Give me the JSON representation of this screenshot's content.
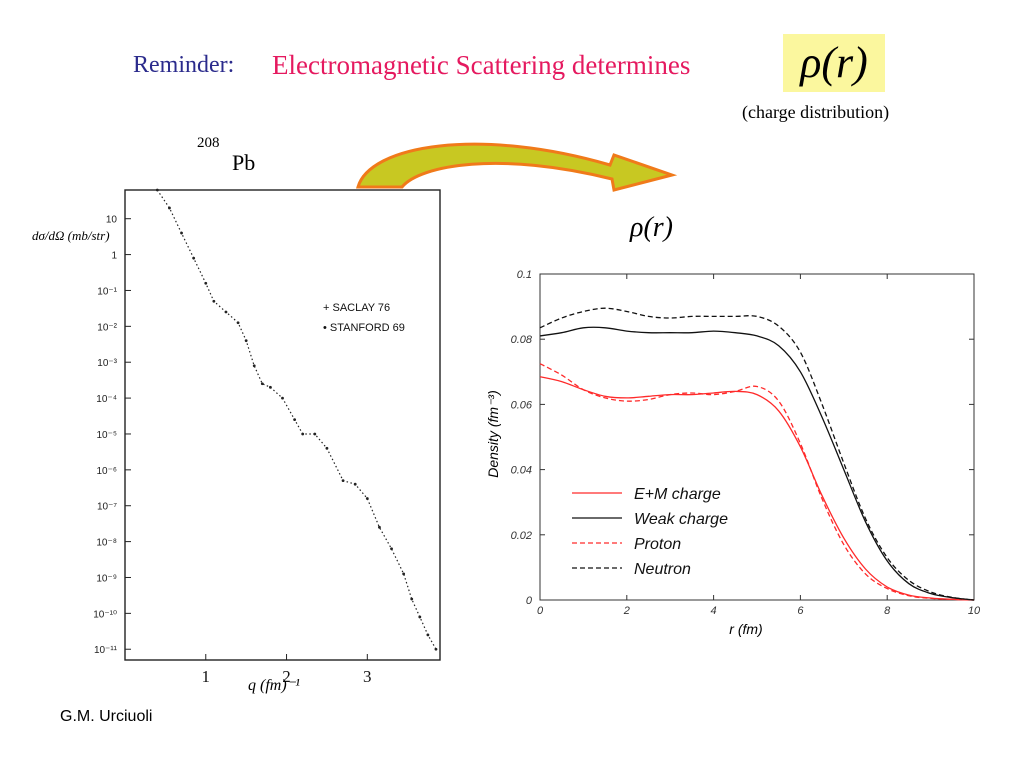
{
  "header": {
    "reminder": "Reminder:",
    "title": "Electromagnetic Scattering  determines",
    "rho_symbol": "ρ(r)",
    "note": "(charge  distribution)"
  },
  "nucleus": {
    "mass_number": "208",
    "symbol": "Pb"
  },
  "right_label": "ρ(r)",
  "author": "G.M. Urciuoli",
  "colors": {
    "reminder": "#2b2b8c",
    "title": "#e5195f",
    "highlight": "#fbf79e",
    "arrow_fill": "#c8c822",
    "arrow_edge": "#f07a1a",
    "red": "#ff2a2a",
    "black": "#111111"
  },
  "chart_data": [
    {
      "type": "scatter",
      "scale": "log-y",
      "ylabel": "dσ/dΩ (mb/str)",
      "xlabel": "q (fm)⁻¹",
      "x_ticks": [
        "1",
        "2",
        "3"
      ],
      "y_ticks": [
        "10",
        "1",
        "10⁻¹",
        "10⁻²",
        "10⁻³",
        "10⁻⁴",
        "10⁻⁵",
        "10⁻⁶",
        "10⁻⁷",
        "10⁻⁸",
        "10⁻⁹",
        "10⁻¹⁰",
        "10⁻¹¹"
      ],
      "xlim": [
        0.0,
        3.9
      ],
      "ylim_log10": [
        -11.3,
        1.8
      ],
      "legend": [
        {
          "marker": "+",
          "label": "SACLAY 76"
        },
        {
          "marker": "•",
          "label": "STANFORD 69"
        }
      ],
      "legend_position": "top-right",
      "series": [
        {
          "marker": "+",
          "x": [
            0.4,
            0.55,
            0.7,
            0.85,
            1.0,
            1.1,
            1.25,
            1.4,
            1.5,
            1.6,
            1.7,
            1.8,
            1.95,
            2.1,
            2.2,
            2.35,
            2.5,
            2.7,
            2.85,
            3.0,
            3.15,
            3.3,
            3.45,
            3.55,
            3.65,
            3.75,
            3.85
          ],
          "log10_y": [
            1.8,
            1.3,
            0.6,
            -0.1,
            -0.8,
            -1.3,
            -1.6,
            -1.9,
            -2.4,
            -3.1,
            -3.6,
            -3.7,
            -4.0,
            -4.6,
            -5.0,
            -5.0,
            -5.4,
            -6.3,
            -6.4,
            -6.8,
            -7.6,
            -8.2,
            -8.9,
            -9.6,
            -10.1,
            -10.6,
            -11.0
          ]
        }
      ]
    },
    {
      "type": "line",
      "xlabel": "r (fm)",
      "ylabel": "Density (fm⁻³)",
      "xlim": [
        0,
        10
      ],
      "ylim": [
        0,
        0.1
      ],
      "x_ticks": [
        "0",
        "2",
        "4",
        "6",
        "8",
        "10"
      ],
      "y_ticks": [
        "0",
        "0.02",
        "0.04",
        "0.06",
        "0.08",
        "0.1"
      ],
      "legend_position": "bottom-left",
      "x": [
        0,
        0.5,
        1,
        1.5,
        2,
        2.5,
        3,
        3.5,
        4,
        4.5,
        5,
        5.5,
        6,
        6.5,
        7,
        7.5,
        8,
        8.5,
        9,
        9.5,
        10
      ],
      "series": [
        {
          "name": "E+M charge",
          "color": "#ff2a2a",
          "dash": false,
          "values": [
            0.0685,
            0.067,
            0.0645,
            0.0625,
            0.062,
            0.0625,
            0.063,
            0.063,
            0.0635,
            0.064,
            0.063,
            0.058,
            0.047,
            0.032,
            0.019,
            0.0095,
            0.004,
            0.0015,
            0.0006,
            0.0002,
            0.0
          ]
        },
        {
          "name": "Weak charge",
          "color": "#111111",
          "dash": false,
          "values": [
            0.081,
            0.082,
            0.0835,
            0.0835,
            0.0825,
            0.082,
            0.082,
            0.082,
            0.0825,
            0.082,
            0.081,
            0.078,
            0.07,
            0.056,
            0.04,
            0.024,
            0.012,
            0.005,
            0.002,
            0.0007,
            0.0
          ]
        },
        {
          "name": "Proton",
          "color": "#ff2a2a",
          "dash": true,
          "values": [
            0.0725,
            0.069,
            0.0645,
            0.062,
            0.061,
            0.0615,
            0.063,
            0.0635,
            0.063,
            0.064,
            0.0655,
            0.061,
            0.048,
            0.031,
            0.017,
            0.008,
            0.0035,
            0.0013,
            0.0005,
            0.0002,
            0.0
          ]
        },
        {
          "name": "Neutron",
          "color": "#111111",
          "dash": true,
          "values": [
            0.0835,
            0.0865,
            0.0885,
            0.0895,
            0.0885,
            0.087,
            0.0865,
            0.087,
            0.087,
            0.087,
            0.087,
            0.084,
            0.076,
            0.06,
            0.042,
            0.025,
            0.013,
            0.006,
            0.0025,
            0.0008,
            0.0
          ]
        }
      ]
    }
  ]
}
